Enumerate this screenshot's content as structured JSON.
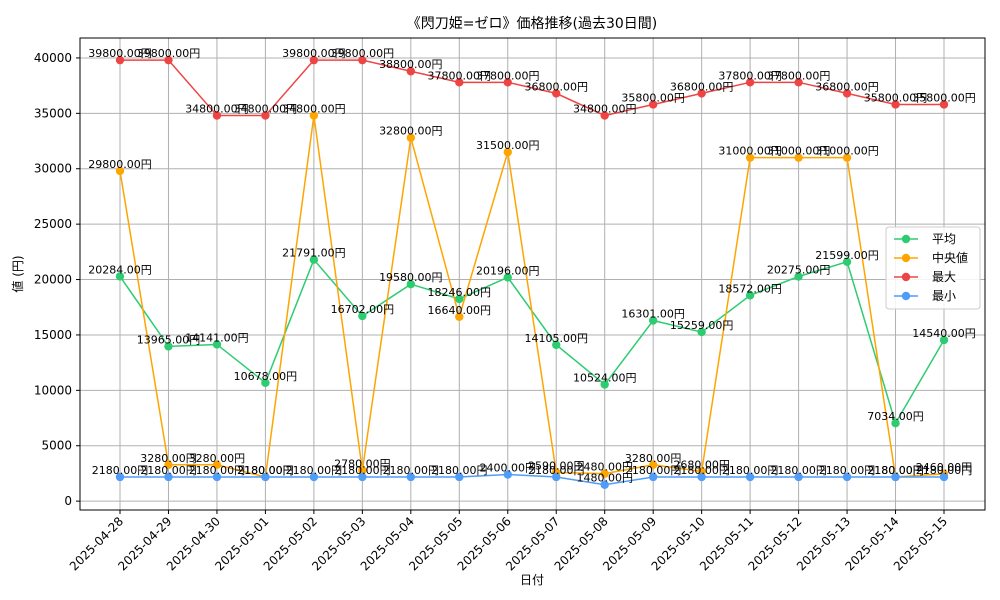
{
  "chart_data": {
    "type": "line",
    "title": "《閃刀姫=ゼロ》価格推移(過去30日間)",
    "xlabel": "日付",
    "ylabel": "値 (円)",
    "ylim": [
      -800,
      41800
    ],
    "yticks": [
      0,
      5000,
      10000,
      15000,
      20000,
      25000,
      30000,
      35000,
      40000
    ],
    "grid": true,
    "legend_position": "right",
    "value_suffix": "円",
    "categories": [
      "2025-04-28",
      "2025-04-29",
      "2025-04-30",
      "2025-05-01",
      "2025-05-02",
      "2025-05-03",
      "2025-05-04",
      "2025-05-05",
      "2025-05-06",
      "2025-05-07",
      "2025-05-08",
      "2025-05-09",
      "2025-05-10",
      "2025-05-11",
      "2025-05-12",
      "2025-05-13",
      "2025-05-14",
      "2025-05-15"
    ],
    "series": [
      {
        "name": "平均",
        "color": "#2ecc71",
        "values": [
          20284,
          13965,
          14141,
          10678,
          21791,
          16702,
          19580,
          18246,
          20196,
          14105,
          10524,
          16301,
          15259,
          18572,
          20275,
          21599,
          7034,
          14540
        ]
      },
      {
        "name": "中央値",
        "color": "#ffa500",
        "values": [
          29800,
          3280,
          3280,
          2180,
          34800,
          2780,
          32800,
          16640,
          31500,
          2590,
          2480,
          3280,
          2680,
          31000,
          31000,
          31000,
          2180,
          2460
        ]
      },
      {
        "name": "最大",
        "color": "#ef4444",
        "values": [
          39800,
          39800,
          34800,
          34800,
          39800,
          39800,
          38800,
          37800,
          37800,
          36800,
          34800,
          35800,
          36800,
          37800,
          37800,
          36800,
          35800,
          35800
        ]
      },
      {
        "name": "最小",
        "color": "#4f9cf9",
        "values": [
          2180,
          2180,
          2180,
          2180,
          2180,
          2180,
          2180,
          2180,
          2400,
          2180,
          1480,
          2180,
          2180,
          2180,
          2180,
          2180,
          2180,
          2180
        ]
      }
    ]
  }
}
